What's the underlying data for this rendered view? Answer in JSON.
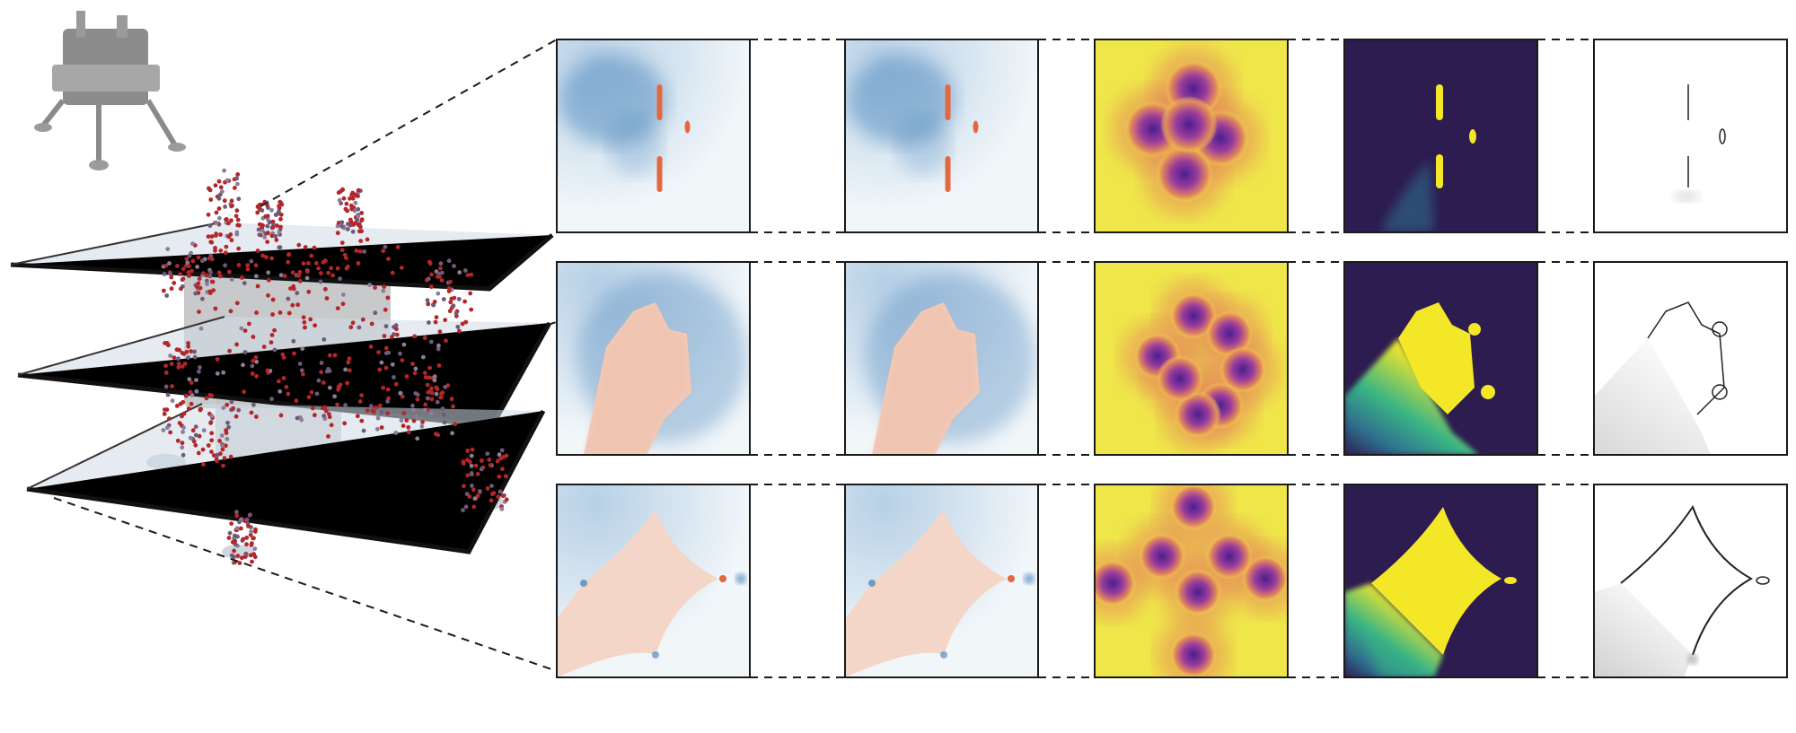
{
  "figure": {
    "left_illustration": {
      "object": "lunar-lander-3d-model",
      "slice_planes": 3,
      "point_cloud_color": "#b3262a",
      "plane_fill": "#cfdbe6"
    },
    "columns": [
      {
        "id": "col1",
        "colormap": "diverging-blue-red",
        "icon": "field-heatmap"
      },
      {
        "id": "col2",
        "colormap": "diverging-blue-red",
        "icon": "field-heatmap"
      },
      {
        "id": "col3",
        "colormap": "plasma-yellow",
        "icon": "density-heatmap"
      },
      {
        "id": "col4",
        "colormap": "viridis-dark",
        "icon": "error-heatmap"
      },
      {
        "id": "col5",
        "colormap": "grayscale-white",
        "icon": "gradient-heatmap"
      }
    ],
    "rows": [
      {
        "id": "row-top"
      },
      {
        "id": "row-middle"
      },
      {
        "id": "row-bottom"
      }
    ],
    "colors": {
      "blue": "#3f7fb8",
      "red": "#e4683f",
      "plasma_yellow": "#efe64a",
      "plasma_purple": "#5a2597",
      "viridis_dark": "#2c1c4f",
      "viridis_yellow": "#f4e728",
      "viridis_green": "#39b485"
    }
  }
}
